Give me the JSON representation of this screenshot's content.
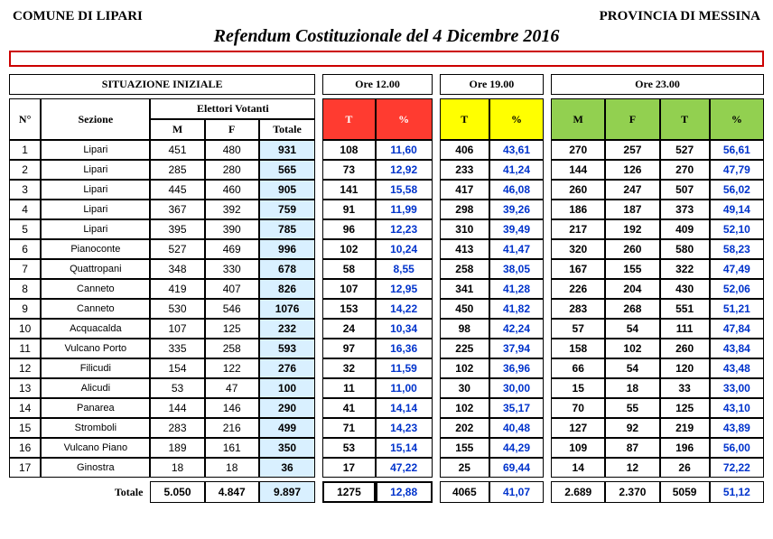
{
  "header_left": "COMUNE DI LIPARI",
  "header_right": "PROVINCIA DI MESSINA",
  "title": "Refendum Costituzionale del 4 Dicembre 2016",
  "group_titles": {
    "situazione": "SITUAZIONE INIZIALE",
    "ore12": "Ore 12.00",
    "ore19": "Ore 19.00",
    "ore23": "Ore 23.00"
  },
  "subheaders": {
    "elettori": "Elettori Votanti",
    "n": "N°",
    "sezione": "Sezione",
    "m": "M",
    "f": "F",
    "totale": "Totale",
    "t": "T",
    "pct": "%"
  },
  "rows": [
    {
      "n": "1",
      "sez": "Lipari",
      "m": "451",
      "f": "480",
      "tot": "931",
      "t12": "108",
      "p12": "11,60",
      "t19": "406",
      "p19": "43,61",
      "m23": "270",
      "f23": "257",
      "t23": "527",
      "p23": "56,61"
    },
    {
      "n": "2",
      "sez": "Lipari",
      "m": "285",
      "f": "280",
      "tot": "565",
      "t12": "73",
      "p12": "12,92",
      "t19": "233",
      "p19": "41,24",
      "m23": "144",
      "f23": "126",
      "t23": "270",
      "p23": "47,79"
    },
    {
      "n": "3",
      "sez": "Lipari",
      "m": "445",
      "f": "460",
      "tot": "905",
      "t12": "141",
      "p12": "15,58",
      "t19": "417",
      "p19": "46,08",
      "m23": "260",
      "f23": "247",
      "t23": "507",
      "p23": "56,02"
    },
    {
      "n": "4",
      "sez": "Lipari",
      "m": "367",
      "f": "392",
      "tot": "759",
      "t12": "91",
      "p12": "11,99",
      "t19": "298",
      "p19": "39,26",
      "m23": "186",
      "f23": "187",
      "t23": "373",
      "p23": "49,14"
    },
    {
      "n": "5",
      "sez": "Lipari",
      "m": "395",
      "f": "390",
      "tot": "785",
      "t12": "96",
      "p12": "12,23",
      "t19": "310",
      "p19": "39,49",
      "m23": "217",
      "f23": "192",
      "t23": "409",
      "p23": "52,10"
    },
    {
      "n": "6",
      "sez": "Pianoconte",
      "m": "527",
      "f": "469",
      "tot": "996",
      "t12": "102",
      "p12": "10,24",
      "t19": "413",
      "p19": "41,47",
      "m23": "320",
      "f23": "260",
      "t23": "580",
      "p23": "58,23"
    },
    {
      "n": "7",
      "sez": "Quattropani",
      "m": "348",
      "f": "330",
      "tot": "678",
      "t12": "58",
      "p12": "8,55",
      "t19": "258",
      "p19": "38,05",
      "m23": "167",
      "f23": "155",
      "t23": "322",
      "p23": "47,49"
    },
    {
      "n": "8",
      "sez": "Canneto",
      "m": "419",
      "f": "407",
      "tot": "826",
      "t12": "107",
      "p12": "12,95",
      "t19": "341",
      "p19": "41,28",
      "m23": "226",
      "f23": "204",
      "t23": "430",
      "p23": "52,06"
    },
    {
      "n": "9",
      "sez": "Canneto",
      "m": "530",
      "f": "546",
      "tot": "1076",
      "t12": "153",
      "p12": "14,22",
      "t19": "450",
      "p19": "41,82",
      "m23": "283",
      "f23": "268",
      "t23": "551",
      "p23": "51,21"
    },
    {
      "n": "10",
      "sez": "Acquacalda",
      "m": "107",
      "f": "125",
      "tot": "232",
      "t12": "24",
      "p12": "10,34",
      "t19": "98",
      "p19": "42,24",
      "m23": "57",
      "f23": "54",
      "t23": "111",
      "p23": "47,84"
    },
    {
      "n": "11",
      "sez": "Vulcano Porto",
      "m": "335",
      "f": "258",
      "tot": "593",
      "t12": "97",
      "p12": "16,36",
      "t19": "225",
      "p19": "37,94",
      "m23": "158",
      "f23": "102",
      "t23": "260",
      "p23": "43,84"
    },
    {
      "n": "12",
      "sez": "Filicudi",
      "m": "154",
      "f": "122",
      "tot": "276",
      "t12": "32",
      "p12": "11,59",
      "t19": "102",
      "p19": "36,96",
      "m23": "66",
      "f23": "54",
      "t23": "120",
      "p23": "43,48"
    },
    {
      "n": "13",
      "sez": "Alicudi",
      "m": "53",
      "f": "47",
      "tot": "100",
      "t12": "11",
      "p12": "11,00",
      "t19": "30",
      "p19": "30,00",
      "m23": "15",
      "f23": "18",
      "t23": "33",
      "p23": "33,00"
    },
    {
      "n": "14",
      "sez": "Panarea",
      "m": "144",
      "f": "146",
      "tot": "290",
      "t12": "41",
      "p12": "14,14",
      "t19": "102",
      "p19": "35,17",
      "m23": "70",
      "f23": "55",
      "t23": "125",
      "p23": "43,10"
    },
    {
      "n": "15",
      "sez": "Stromboli",
      "m": "283",
      "f": "216",
      "tot": "499",
      "t12": "71",
      "p12": "14,23",
      "t19": "202",
      "p19": "40,48",
      "m23": "127",
      "f23": "92",
      "t23": "219",
      "p23": "43,89"
    },
    {
      "n": "16",
      "sez": "Vulcano Piano",
      "m": "189",
      "f": "161",
      "tot": "350",
      "t12": "53",
      "p12": "15,14",
      "t19": "155",
      "p19": "44,29",
      "m23": "109",
      "f23": "87",
      "t23": "196",
      "p23": "56,00"
    },
    {
      "n": "17",
      "sez": "Ginostra",
      "m": "18",
      "f": "18",
      "tot": "36",
      "t12": "17",
      "p12": "47,22",
      "t19": "25",
      "p19": "69,44",
      "m23": "14",
      "f23": "12",
      "t23": "26",
      "p23": "72,22"
    }
  ],
  "totals": {
    "label": "Totale",
    "m": "5.050",
    "f": "4.847",
    "tot": "9.897",
    "t12": "1275",
    "p12": "12,88",
    "t19": "4065",
    "p19": "41,07",
    "m23": "2.689",
    "f23": "2.370",
    "t23": "5059",
    "p23": "51,12"
  }
}
